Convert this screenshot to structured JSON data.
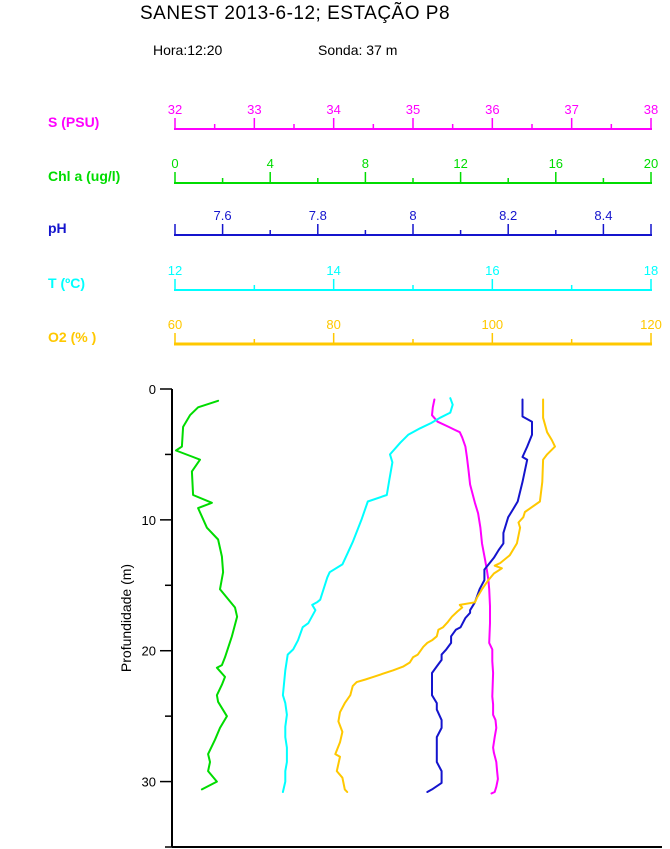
{
  "header": {
    "title": "SANEST 2013-6-12; ESTAÇÃO P8",
    "hora": "Hora:12:20",
    "sonda": "Sonda: 37 m"
  },
  "chart_data": {
    "type": "line",
    "subtype": "oceanographic-depth-profile",
    "title": "SANEST 2013-6-12; ESTAÇÃO P8",
    "annotations": [
      "Hora:12:20",
      "Sonda: 37 m"
    ],
    "grid": false,
    "legend": "none (color-coded top axes)",
    "depth_axis": {
      "label": "Profundidade (m)",
      "min": 0,
      "max": 35,
      "major_ticks": [
        0,
        10,
        20,
        30
      ],
      "minor_ticks": [
        5,
        15,
        25,
        35
      ],
      "color": "#000000"
    },
    "axes": [
      {
        "id": "salinity",
        "label": "S (PSU)",
        "color": "#ff00ff",
        "min": 32,
        "max": 38,
        "labeled_ticks": [
          32,
          33,
          34,
          35,
          36,
          37,
          38
        ],
        "minor_step": 0.5
      },
      {
        "id": "chla",
        "label": "Chl a (ug/l)",
        "color": "#00dc00",
        "min": 0,
        "max": 20,
        "labeled_ticks": [
          0,
          4,
          8,
          12,
          16,
          20
        ],
        "minor_step": 2
      },
      {
        "id": "ph",
        "label": "pH",
        "color": "#1414cd",
        "min": 7.5,
        "max": 8.5,
        "labeled_ticks": [
          7.6,
          7.8,
          8,
          8.2,
          8.4
        ],
        "minor_step": 0.1
      },
      {
        "id": "temperature",
        "label": "T (ºC)",
        "color": "#00ffff",
        "min": 12,
        "max": 18,
        "labeled_ticks": [
          12,
          14,
          16,
          18
        ],
        "minor_step": 1
      },
      {
        "id": "oxygen",
        "label": "O2 (% )",
        "color": "#ffc800",
        "min": 60,
        "max": 120,
        "labeled_ticks": [
          60,
          80,
          100,
          120
        ],
        "minor_step": 10
      }
    ],
    "profiles": [
      {
        "axis": "salinity",
        "name": "Salinity (PSU)",
        "points": [
          [
            0.8,
            35.27
          ],
          [
            1.4,
            35.25
          ],
          [
            2.0,
            35.24
          ],
          [
            2.5,
            35.31
          ],
          [
            2.9,
            35.45
          ],
          [
            3.1,
            35.52
          ],
          [
            3.3,
            35.59
          ],
          [
            3.7,
            35.62
          ],
          [
            4.4,
            35.66
          ],
          [
            5.2,
            35.68
          ],
          [
            6.2,
            35.7
          ],
          [
            7.3,
            35.72
          ],
          [
            8.7,
            35.78
          ],
          [
            9.5,
            35.82
          ],
          [
            10.6,
            35.85
          ],
          [
            11.8,
            35.87
          ],
          [
            13.1,
            35.91
          ],
          [
            13.8,
            35.93
          ],
          [
            14.6,
            35.95
          ],
          [
            15.3,
            35.96
          ],
          [
            16.6,
            35.97
          ],
          [
            17.9,
            35.97
          ],
          [
            19.4,
            35.96
          ],
          [
            19.9,
            36.0
          ],
          [
            20.8,
            36.0
          ],
          [
            21.7,
            36.01
          ],
          [
            23.5,
            36.0
          ],
          [
            24.1,
            36.01
          ],
          [
            24.9,
            36.01
          ],
          [
            25.3,
            36.04
          ],
          [
            25.9,
            36.05
          ],
          [
            26.6,
            36.03
          ],
          [
            27.4,
            36.01
          ],
          [
            27.8,
            36.02
          ],
          [
            28.5,
            36.05
          ],
          [
            29.2,
            36.06
          ],
          [
            29.8,
            36.07
          ],
          [
            30.4,
            36.05
          ],
          [
            30.8,
            36.03
          ],
          [
            30.9,
            35.99
          ]
        ]
      },
      {
        "axis": "chla",
        "name": "Chlorophyll a (ug/l)",
        "points": [
          [
            0.9,
            1.81
          ],
          [
            1.4,
            0.97
          ],
          [
            2.0,
            0.63
          ],
          [
            2.9,
            0.34
          ],
          [
            4.4,
            0.29
          ],
          [
            4.7,
            0.04
          ],
          [
            5.2,
            0.76
          ],
          [
            5.4,
            1.05
          ],
          [
            6.3,
            0.71
          ],
          [
            8.1,
            0.76
          ],
          [
            8.7,
            1.55
          ],
          [
            9.1,
            0.97
          ],
          [
            10.6,
            1.34
          ],
          [
            11.5,
            1.81
          ],
          [
            12.8,
            1.97
          ],
          [
            14.0,
            2.02
          ],
          [
            15.3,
            1.89
          ],
          [
            16.7,
            2.52
          ],
          [
            17.4,
            2.61
          ],
          [
            18.9,
            2.39
          ],
          [
            20.5,
            2.1
          ],
          [
            21.1,
            1.97
          ],
          [
            21.3,
            1.76
          ],
          [
            22.0,
            2.1
          ],
          [
            22.6,
            1.97
          ],
          [
            23.4,
            1.76
          ],
          [
            23.9,
            1.81
          ],
          [
            25.0,
            2.18
          ],
          [
            25.9,
            1.89
          ],
          [
            26.8,
            1.68
          ],
          [
            27.9,
            1.39
          ],
          [
            28.5,
            1.47
          ],
          [
            29.2,
            1.39
          ],
          [
            30.0,
            1.76
          ],
          [
            30.6,
            1.13
          ]
        ]
      },
      {
        "axis": "ph",
        "name": "pH",
        "points": [
          [
            0.8,
            8.23
          ],
          [
            2.1,
            8.23
          ],
          [
            2.5,
            8.25
          ],
          [
            3.5,
            8.25
          ],
          [
            4.4,
            8.24
          ],
          [
            5.2,
            8.23
          ],
          [
            5.4,
            8.24
          ],
          [
            7.1,
            8.23
          ],
          [
            8.6,
            8.22
          ],
          [
            9.2,
            8.21
          ],
          [
            9.8,
            8.2
          ],
          [
            11.0,
            8.19
          ],
          [
            11.8,
            8.19
          ],
          [
            12.3,
            8.18
          ],
          [
            12.9,
            8.17
          ],
          [
            13.8,
            8.15
          ],
          [
            14.6,
            8.15
          ],
          [
            15.3,
            8.14
          ],
          [
            16.3,
            8.13
          ],
          [
            16.9,
            8.12
          ],
          [
            17.1,
            8.12
          ],
          [
            17.5,
            8.11
          ],
          [
            18.2,
            8.1
          ],
          [
            18.4,
            8.09
          ],
          [
            18.9,
            8.08
          ],
          [
            19.4,
            8.08
          ],
          [
            19.9,
            8.07
          ],
          [
            20.3,
            8.06
          ],
          [
            20.7,
            8.06
          ],
          [
            21.2,
            8.05
          ],
          [
            21.7,
            8.04
          ],
          [
            22.2,
            8.04
          ],
          [
            23.4,
            8.04
          ],
          [
            24.0,
            8.05
          ],
          [
            24.5,
            8.05
          ],
          [
            25.3,
            8.06
          ],
          [
            25.9,
            8.06
          ],
          [
            26.6,
            8.05
          ],
          [
            27.6,
            8.05
          ],
          [
            28.1,
            8.05
          ],
          [
            28.5,
            8.05
          ],
          [
            29.2,
            8.06
          ],
          [
            30.1,
            8.06
          ],
          [
            30.6,
            8.04
          ],
          [
            30.8,
            8.03
          ]
        ]
      },
      {
        "axis": "temperature",
        "name": "Temperature (ºC)",
        "points": [
          [
            0.7,
            15.47
          ],
          [
            1.2,
            15.5
          ],
          [
            1.8,
            15.47
          ],
          [
            2.2,
            15.34
          ],
          [
            2.6,
            15.23
          ],
          [
            3.0,
            15.09
          ],
          [
            3.5,
            14.94
          ],
          [
            4.1,
            14.84
          ],
          [
            5.0,
            14.71
          ],
          [
            5.6,
            14.74
          ],
          [
            7.0,
            14.7
          ],
          [
            8.1,
            14.67
          ],
          [
            8.6,
            14.43
          ],
          [
            10.0,
            14.35
          ],
          [
            11.7,
            14.24
          ],
          [
            12.5,
            14.18
          ],
          [
            13.4,
            14.11
          ],
          [
            14.0,
            13.95
          ],
          [
            14.4,
            13.92
          ],
          [
            16.1,
            13.83
          ],
          [
            16.3,
            13.79
          ],
          [
            16.5,
            13.73
          ],
          [
            16.9,
            13.77
          ],
          [
            17.9,
            13.68
          ],
          [
            18.2,
            13.61
          ],
          [
            19.2,
            13.55
          ],
          [
            19.9,
            13.49
          ],
          [
            20.3,
            13.42
          ],
          [
            20.7,
            13.41
          ],
          [
            21.5,
            13.39
          ],
          [
            23.4,
            13.36
          ],
          [
            24.0,
            13.39
          ],
          [
            24.9,
            13.41
          ],
          [
            25.8,
            13.39
          ],
          [
            26.6,
            13.39
          ],
          [
            27.4,
            13.41
          ],
          [
            28.5,
            13.41
          ],
          [
            29.2,
            13.39
          ],
          [
            30.0,
            13.39
          ],
          [
            30.8,
            13.36
          ]
        ]
      },
      {
        "axis": "oxygen",
        "name": "Oxygen saturation (%)",
        "points": [
          [
            0.8,
            106.4
          ],
          [
            2.2,
            106.4
          ],
          [
            3.3,
            106.9
          ],
          [
            3.9,
            107.5
          ],
          [
            4.4,
            107.9
          ],
          [
            5.0,
            106.9
          ],
          [
            5.4,
            106.4
          ],
          [
            7.1,
            106.3
          ],
          [
            8.6,
            106.0
          ],
          [
            9.4,
            104.1
          ],
          [
            9.8,
            103.9
          ],
          [
            10.2,
            103.3
          ],
          [
            10.6,
            103.5
          ],
          [
            11.8,
            103.1
          ],
          [
            12.7,
            102.2
          ],
          [
            13.3,
            101.0
          ],
          [
            13.5,
            100.3
          ],
          [
            13.7,
            101.2
          ],
          [
            14.1,
            100.2
          ],
          [
            14.6,
            99.5
          ],
          [
            15.3,
            98.7
          ],
          [
            15.9,
            98.1
          ],
          [
            16.3,
            97.8
          ],
          [
            16.5,
            95.9
          ],
          [
            16.7,
            96.2
          ],
          [
            17.0,
            95.6
          ],
          [
            17.4,
            94.9
          ],
          [
            17.8,
            94.4
          ],
          [
            18.2,
            93.8
          ],
          [
            18.4,
            93.2
          ],
          [
            18.9,
            93.0
          ],
          [
            19.2,
            92.4
          ],
          [
            19.4,
            91.8
          ],
          [
            19.7,
            91.3
          ],
          [
            20.3,
            90.6
          ],
          [
            20.5,
            90.0
          ],
          [
            20.9,
            89.6
          ],
          [
            21.2,
            88.8
          ],
          [
            21.5,
            87.5
          ],
          [
            22.0,
            85.0
          ],
          [
            22.2,
            84.0
          ],
          [
            22.4,
            82.9
          ],
          [
            22.7,
            82.4
          ],
          [
            23.4,
            82.1
          ],
          [
            24.0,
            81.4
          ],
          [
            24.7,
            80.8
          ],
          [
            25.4,
            80.6
          ],
          [
            26.2,
            81.1
          ],
          [
            27.0,
            80.8
          ],
          [
            27.9,
            80.2
          ],
          [
            28.1,
            80.8
          ],
          [
            29.2,
            80.4
          ],
          [
            29.7,
            81.1
          ],
          [
            30.6,
            81.4
          ],
          [
            30.8,
            81.7
          ]
        ]
      }
    ]
  }
}
